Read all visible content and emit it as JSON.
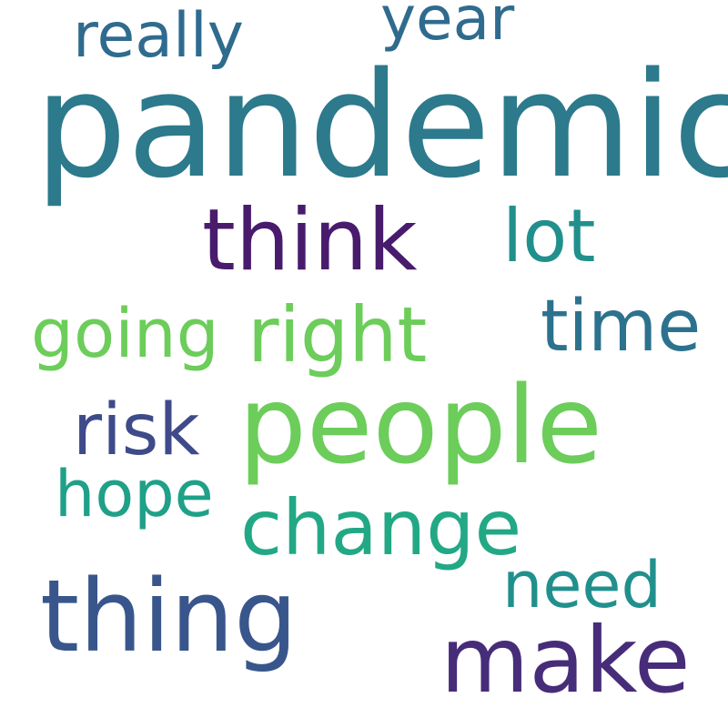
{
  "wordcloud": {
    "words": [
      {
        "text": "pandemic",
        "color": "#2c7a8c"
      },
      {
        "text": "people",
        "color": "#6ccd5a"
      },
      {
        "text": "thing",
        "color": "#39568c"
      },
      {
        "text": "think",
        "color": "#481b6d"
      },
      {
        "text": "make",
        "color": "#472c7a"
      },
      {
        "text": "right",
        "color": "#6ccd5a"
      },
      {
        "text": "change",
        "color": "#22a884"
      },
      {
        "text": "really",
        "color": "#2f6b8e"
      },
      {
        "text": "year",
        "color": "#2f6b8e"
      },
      {
        "text": "lot",
        "color": "#21908d"
      },
      {
        "text": "time",
        "color": "#2c728e"
      },
      {
        "text": "going",
        "color": "#6ccd5a"
      },
      {
        "text": "risk",
        "color": "#3e4a89"
      },
      {
        "text": "hope",
        "color": "#1fa088"
      },
      {
        "text": "need",
        "color": "#21908d"
      }
    ]
  }
}
